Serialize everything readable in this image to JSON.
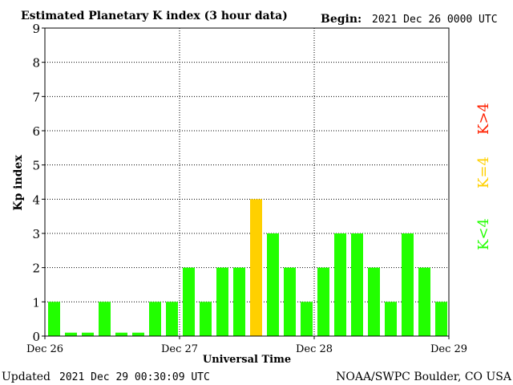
{
  "header": {
    "title": "Estimated Planetary K index (3 hour data)",
    "begin_label": "Begin:",
    "begin_value": "2021 Dec 26 0000 UTC"
  },
  "footer": {
    "updated_label": "Updated",
    "updated_value": "2021 Dec 29 00:30:09 UTC",
    "credit": "NOAA/SWPC Boulder, CO USA"
  },
  "legend": {
    "low": "K<4",
    "mid": "K=4",
    "high": "K>4"
  },
  "colors": {
    "low": "#22ff00",
    "mid": "#ffd000",
    "high": "#ff2000",
    "axis": "#000000",
    "grid": "#000000"
  },
  "chart_data": {
    "type": "bar",
    "title": "Estimated Planetary K index (3 hour data)",
    "xlabel": "Universal Time",
    "ylabel": "Kp index",
    "ylim": [
      0,
      9
    ],
    "yticks": [
      "0",
      "1",
      "2",
      "3",
      "4",
      "5",
      "6",
      "7",
      "8",
      "9"
    ],
    "xtick_labels": [
      "Dec 26",
      "Dec 27",
      "Dec 28",
      "Dec 29"
    ],
    "grid": true,
    "bars_per_day": 8,
    "values": [
      1,
      0,
      0,
      1,
      0,
      0,
      1,
      1,
      2,
      1,
      2,
      2,
      4,
      3,
      2,
      1,
      2,
      3,
      3,
      2,
      1,
      3,
      2,
      1
    ]
  }
}
